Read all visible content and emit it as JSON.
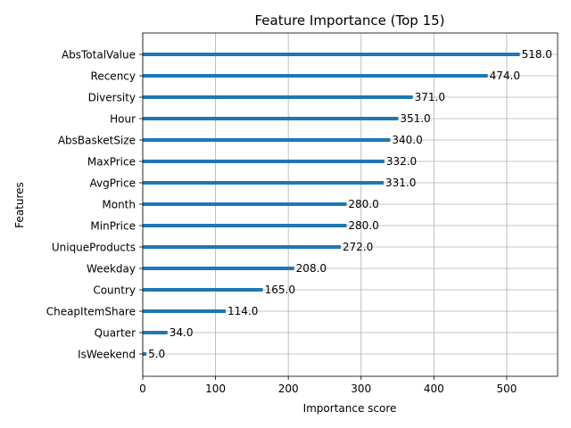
{
  "chart_data": {
    "type": "bar",
    "orientation": "horizontal",
    "title": "Feature Importance (Top 15)",
    "xlabel": "Importance score",
    "ylabel": "Features",
    "xlim": [
      0,
      570
    ],
    "xticks": [
      0,
      100,
      200,
      300,
      400,
      500
    ],
    "grid": true,
    "bar_color": "#1f77b4",
    "categories": [
      "AbsTotalValue",
      "Recency",
      "Diversity",
      "Hour",
      "AbsBasketSize",
      "MaxPrice",
      "AvgPrice",
      "Month",
      "MinPrice",
      "UniqueProducts",
      "Weekday",
      "Country",
      "CheapItemShare",
      "Quarter",
      "IsWeekend"
    ],
    "values": [
      518.0,
      474.0,
      371.0,
      351.0,
      340.0,
      332.0,
      331.0,
      280.0,
      280.0,
      272.0,
      208.0,
      165.0,
      114.0,
      34.0,
      5.0
    ],
    "value_labels": [
      "518.0",
      "474.0",
      "371.0",
      "351.0",
      "340.0",
      "332.0",
      "331.0",
      "280.0",
      "280.0",
      "272.0",
      "208.0",
      "165.0",
      "114.0",
      "34.0",
      "5.0"
    ]
  }
}
